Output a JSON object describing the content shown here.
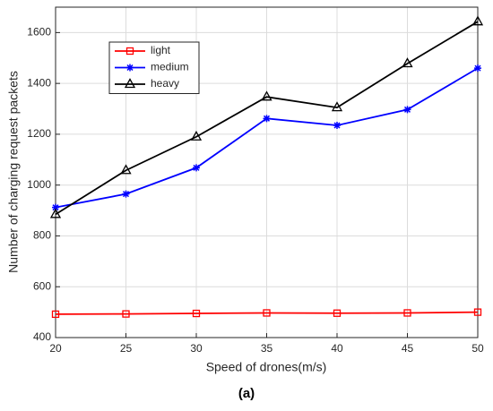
{
  "chart_data": {
    "type": "line",
    "xlabel": "Speed of drones(m/s)",
    "ylabel": "Number of charging request packets",
    "caption": "(a)",
    "x": [
      20,
      25,
      30,
      35,
      40,
      45,
      50
    ],
    "series": [
      {
        "name": "light",
        "color": "#ff0000",
        "marker": "square",
        "values": [
          492,
          493,
          495,
          497,
          496,
          497,
          500
        ]
      },
      {
        "name": "medium",
        "color": "#0000ff",
        "marker": "asterisk",
        "values": [
          912,
          965,
          1068,
          1262,
          1235,
          1297,
          1460
        ]
      },
      {
        "name": "heavy",
        "color": "#000000",
        "marker": "triangle",
        "values": [
          885,
          1058,
          1190,
          1347,
          1305,
          1478,
          1643
        ]
      }
    ],
    "xlim": [
      20,
      50
    ],
    "xticks": [
      20,
      25,
      30,
      35,
      40,
      45,
      50
    ],
    "ylim": [
      400,
      1700
    ],
    "yticks": [
      400,
      600,
      800,
      1000,
      1200,
      1400,
      1600
    ],
    "grid": true,
    "legend": "upper left"
  }
}
